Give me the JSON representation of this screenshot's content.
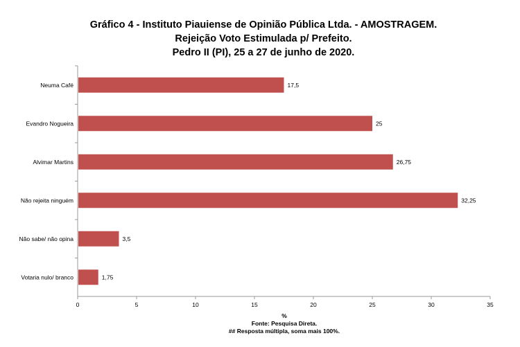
{
  "chart_data": {
    "type": "bar",
    "orientation": "horizontal",
    "title": [
      "Gráfico 4 - Instituto Piauiense de Opinião Pública Ltda. - AMOSTRAGEM.",
      "Rejeição Voto Estimulada p/ Prefeito.",
      "Pedro II (PI), 25 a 27 de junho de 2020."
    ],
    "categories": [
      "Neuma Café",
      "Evandro Nogueira",
      "Alvimar Martins",
      "Não rejeita ninguém",
      "Não sabe/ não opina",
      "Votaria nulo/ branco"
    ],
    "values": [
      17.5,
      25,
      26.75,
      32.25,
      3.5,
      1.75
    ],
    "value_labels": [
      "17,5",
      "25",
      "26,75",
      "32,25",
      "3,5",
      "1,75"
    ],
    "xlabel": "%",
    "xlim": [
      0,
      35
    ],
    "xticks": [
      0,
      5,
      10,
      15,
      20,
      25,
      30,
      35
    ],
    "grid": false,
    "color": "#c0504d"
  },
  "footer": {
    "source": "Fonte: Pesquisa Direta.",
    "note": "## Resposta múltipla, soma mais 100%."
  }
}
